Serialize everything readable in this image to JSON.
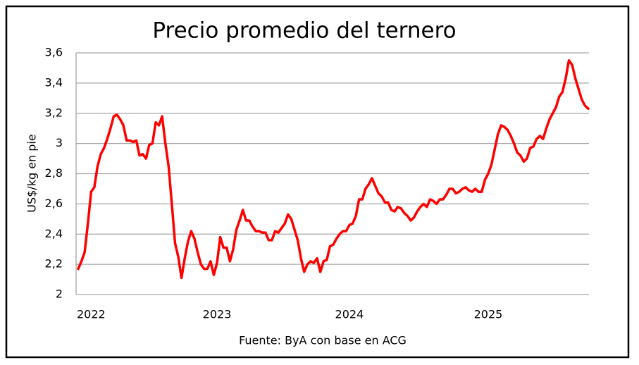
{
  "chart_data": {
    "type": "line",
    "title": "Precio promedio del ternero",
    "y_label": "US$/kg en pie",
    "source": "Fuente: ByA con base en ACG",
    "color": "#ff0000",
    "grid": true,
    "ylim": [
      2,
      3.6
    ],
    "yticks": [
      2,
      {
        "value": 2.2,
        "label": "2,2"
      },
      {
        "value": 2.4,
        "label": "2,4"
      },
      {
        "value": 2.6,
        "label": "2,6"
      },
      {
        "value": 2.8,
        "label": "2,8"
      },
      3,
      {
        "value": 3.2,
        "label": "3,2"
      },
      {
        "value": 3.4,
        "label": "3,4"
      },
      {
        "value": 3.6,
        "label": "3,6"
      }
    ],
    "categories": [
      null,
      null,
      null,
      null,
      "2022",
      null,
      null,
      null,
      null,
      null,
      null,
      null,
      null,
      null,
      null,
      null,
      null,
      null,
      null,
      null,
      null,
      null,
      null,
      null,
      null,
      null,
      null,
      null,
      null,
      null,
      null,
      null,
      null,
      null,
      null,
      null,
      null,
      null,
      null,
      null,
      null,
      null,
      null,
      "2023",
      null,
      null,
      null,
      null,
      null,
      null,
      null,
      null,
      null,
      null,
      null,
      null,
      null,
      null,
      null,
      null,
      null,
      null,
      null,
      null,
      null,
      null,
      null,
      null,
      null,
      null,
      null,
      null,
      null,
      null,
      null,
      null,
      null,
      null,
      null,
      null,
      null,
      null,
      null,
      null,
      "2024",
      null,
      null,
      null,
      null,
      null,
      null,
      null,
      null,
      null,
      null,
      null,
      null,
      null,
      null,
      null,
      null,
      null,
      null,
      null,
      null,
      null,
      null,
      null,
      null,
      null,
      null,
      null,
      null,
      null,
      null,
      null,
      null,
      null,
      null,
      null,
      null,
      null,
      null,
      null,
      null,
      null,
      null,
      "2025",
      null,
      null,
      null,
      null,
      null,
      null,
      null,
      null,
      null,
      null,
      null,
      null,
      null,
      null,
      null,
      null,
      null,
      null,
      null,
      null,
      null,
      null,
      null,
      null,
      null,
      null,
      null,
      null,
      null,
      null,
      null
    ],
    "values": [
      2.17,
      2.22,
      2.28,
      2.47,
      2.68,
      2.71,
      2.85,
      2.93,
      2.97,
      3.03,
      3.1,
      3.18,
      3.19,
      3.16,
      3.12,
      3.02,
      3.02,
      3.01,
      3.02,
      2.92,
      2.93,
      2.9,
      2.99,
      3,
      3.14,
      3.12,
      3.18,
      3,
      2.85,
      2.6,
      2.34,
      2.25,
      2.11,
      2.24,
      2.35,
      2.42,
      2.37,
      2.28,
      2.2,
      2.17,
      2.17,
      2.22,
      2.13,
      2.21,
      2.38,
      2.31,
      2.31,
      2.22,
      2.3,
      2.43,
      2.49,
      2.56,
      2.49,
      2.49,
      2.45,
      2.42,
      2.42,
      2.41,
      2.41,
      2.36,
      2.36,
      2.42,
      2.41,
      2.44,
      2.47,
      2.53,
      2.5,
      2.43,
      2.36,
      2.24,
      2.15,
      2.2,
      2.22,
      2.21,
      2.24,
      2.15,
      2.22,
      2.23,
      2.32,
      2.33,
      2.37,
      2.4,
      2.42,
      2.42,
      2.46,
      2.47,
      2.52,
      2.63,
      2.63,
      2.7,
      2.73,
      2.77,
      2.72,
      2.67,
      2.65,
      2.61,
      2.61,
      2.56,
      2.55,
      2.58,
      2.57,
      2.54,
      2.52,
      2.49,
      2.51,
      2.55,
      2.58,
      2.6,
      2.58,
      2.63,
      2.62,
      2.6,
      2.63,
      2.63,
      2.66,
      2.7,
      2.7,
      2.67,
      2.68,
      2.7,
      2.71,
      2.69,
      2.68,
      2.7,
      2.68,
      2.68,
      2.76,
      2.8,
      2.86,
      2.96,
      3.06,
      3.12,
      3.11,
      3.09,
      3.05,
      3,
      2.94,
      2.92,
      2.88,
      2.9,
      2.97,
      2.98,
      3.03,
      3.05,
      3.03,
      3.1,
      3.16,
      3.2,
      3.24,
      3.31,
      3.34,
      3.43,
      3.55,
      3.52,
      3.43,
      3.36,
      3.29,
      3.25,
      3.23
    ]
  }
}
